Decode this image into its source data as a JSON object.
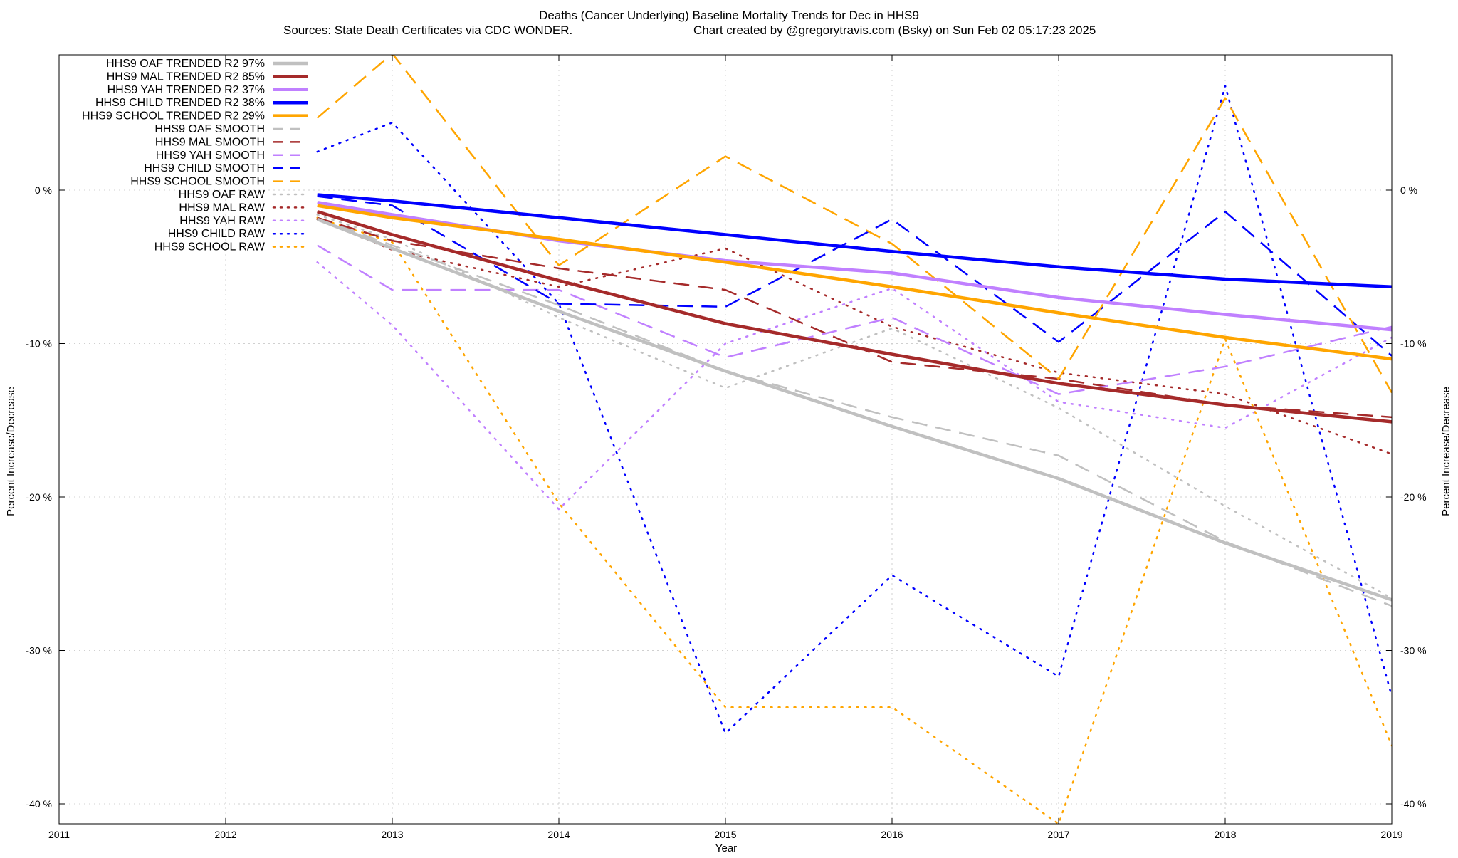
{
  "chart_data": {
    "type": "line",
    "title": "Deaths (Cancer Underlying)  Baseline Mortality Trends for Dec in HHS9",
    "subtitle_left": "Sources: State Death Certificates via CDC WONDER.",
    "subtitle_right": "Chart created by @gregorytravis.com (Bsky) on Sun Feb 02 05:17:23 2025",
    "xlabel": "Year",
    "ylabel": "Percent Increase/Decrease",
    "ylabel_right": "Percent Increase/Decrease",
    "xlim": [
      2011,
      2019
    ],
    "ylim": [
      -41.3,
      8.9
    ],
    "x_ticks": [
      2011,
      2012,
      2013,
      2014,
      2015,
      2016,
      2017,
      2018,
      2019
    ],
    "x_tick_labels": [
      "2011",
      "2012",
      "2013",
      "2014",
      "2015",
      "2016",
      "2017",
      "2018",
      "2019"
    ],
    "y_ticks": [
      0,
      -10,
      -20,
      -30,
      -40
    ],
    "y_tick_labels": [
      "0 %",
      "-10 %",
      "-20 %",
      "-30 %",
      "-40 %"
    ],
    "grid": true,
    "legend_position": "top-left",
    "x": [
      2012.55,
      2013,
      2014,
      2015,
      2016,
      2017,
      2018,
      2019
    ],
    "series": [
      {
        "name": "HHS9 OAF TRENDED R2  97%",
        "style": "solid",
        "color": "#c0c0c0",
        "width": 4.5,
        "values": [
          -1.9,
          -3.8,
          -7.9,
          -11.8,
          -15.4,
          -18.8,
          -23.0,
          -26.7
        ]
      },
      {
        "name": "HHS9 MAL TRENDED R2  85%",
        "style": "solid",
        "color": "#a52a2a",
        "width": 4.5,
        "values": [
          -1.4,
          -2.9,
          -5.9,
          -8.7,
          -10.7,
          -12.6,
          -14.0,
          -15.1
        ]
      },
      {
        "name": "HHS9 YAH TRENDED R2  37%",
        "style": "solid",
        "color": "#c080ff",
        "width": 4.5,
        "values": [
          -0.8,
          -1.6,
          -3.3,
          -4.6,
          -5.4,
          -7.0,
          -8.1,
          -9.1
        ]
      },
      {
        "name": "HHS9 CHILD TRENDED R2  38%",
        "style": "solid",
        "color": "#0000ff",
        "width": 4.5,
        "values": [
          -0.3,
          -0.7,
          -1.8,
          -2.9,
          -4.0,
          -5.0,
          -5.8,
          -6.3
        ]
      },
      {
        "name": "HHS9 SCHOOL TRENDED R2  29%",
        "style": "solid",
        "color": "#ffa500",
        "width": 4.5,
        "values": [
          -1.0,
          -1.8,
          -3.2,
          -4.7,
          -6.3,
          -8.0,
          -9.6,
          -11.0
        ]
      },
      {
        "name": "HHS9 OAF SMOOTH",
        "style": "dashed",
        "color": "#c0c0c0",
        "width": 2.5,
        "values": [
          -1.8,
          -3.6,
          -7.5,
          -11.8,
          -14.8,
          -17.3,
          -22.9,
          -27.1
        ]
      },
      {
        "name": "HHS9 MAL SMOOTH",
        "style": "dashed",
        "color": "#a52a2a",
        "width": 2.5,
        "values": [
          -1.8,
          -3.3,
          -5.1,
          -6.5,
          -11.2,
          -12.3,
          -14.0,
          -14.8
        ]
      },
      {
        "name": "HHS9 YAH SMOOTH",
        "style": "dashed",
        "color": "#c080ff",
        "width": 2.5,
        "values": [
          -3.6,
          -6.5,
          -6.5,
          -10.9,
          -8.3,
          -13.3,
          -11.5,
          -8.9
        ]
      },
      {
        "name": "HHS9 CHILD SMOOTH",
        "style": "dashed",
        "color": "#0000ff",
        "width": 2.5,
        "values": [
          -0.4,
          -1.0,
          -7.4,
          -7.6,
          -1.9,
          -9.9,
          -1.4,
          -10.8
        ]
      },
      {
        "name": "HHS9 SCHOOL SMOOTH",
        "style": "dashed",
        "color": "#ffa500",
        "width": 2.5,
        "values": [
          4.7,
          8.9,
          -4.9,
          2.2,
          -3.5,
          -12.3,
          6.0,
          -13.2
        ]
      },
      {
        "name": "HHS9 OAF RAW",
        "style": "dotted",
        "color": "#c0c0c0",
        "width": 2.5,
        "values": [
          -1.6,
          -3.2,
          -8.3,
          -12.9,
          -9.0,
          -14.2,
          -20.6,
          -26.6
        ]
      },
      {
        "name": "HHS9 MAL RAW",
        "style": "dotted",
        "color": "#a52a2a",
        "width": 2.5,
        "values": [
          -1.9,
          -3.9,
          -6.3,
          -3.8,
          -8.9,
          -11.9,
          -13.3,
          -17.2
        ]
      },
      {
        "name": "HHS9 YAH RAW",
        "style": "dotted",
        "color": "#c080ff",
        "width": 2.5,
        "values": [
          -4.7,
          -8.8,
          -20.8,
          -10.0,
          -6.4,
          -13.8,
          -15.5,
          -9.6
        ]
      },
      {
        "name": "HHS9 CHILD RAW",
        "style": "dotted",
        "color": "#0000ff",
        "width": 2.5,
        "values": [
          2.5,
          4.4,
          -7.4,
          -35.4,
          -25.1,
          -31.7,
          6.8,
          -33.0
        ]
      },
      {
        "name": "HHS9 SCHOOL RAW",
        "style": "dotted",
        "color": "#ffa500",
        "width": 2.5,
        "values": [
          -1.8,
          -3.4,
          -20.4,
          -33.7,
          -33.7,
          -41.3,
          -9.7,
          -36.2
        ]
      }
    ]
  }
}
